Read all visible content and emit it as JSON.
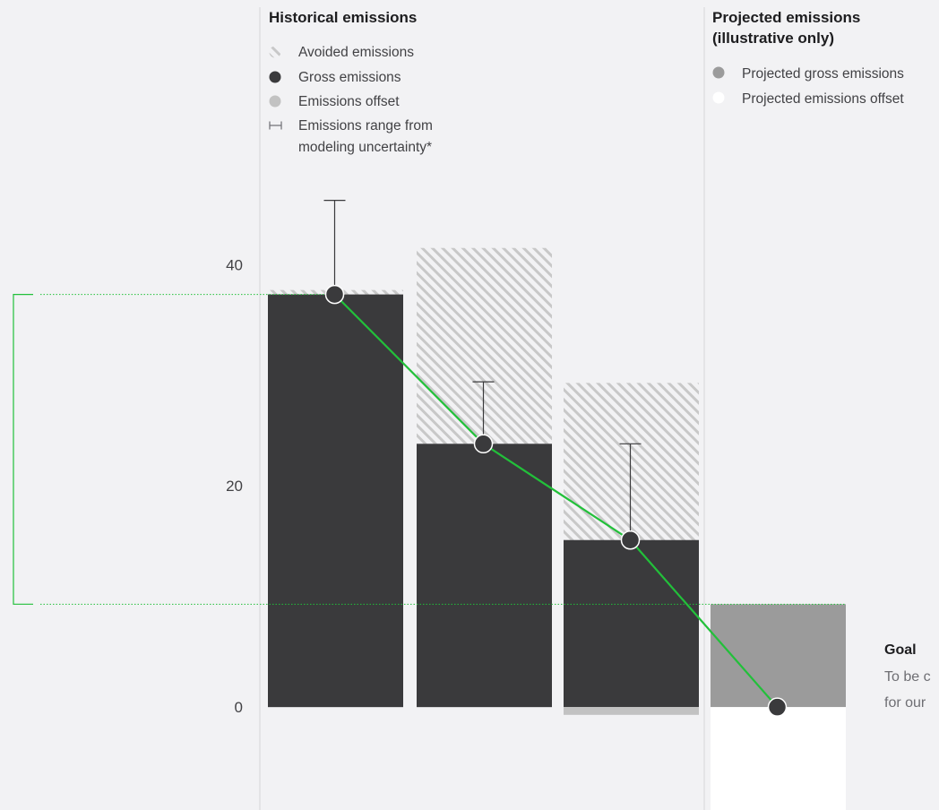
{
  "chart_data": {
    "type": "bar",
    "historical_heading": "Historical emissions",
    "projected_heading_line1": "Projected emissions",
    "projected_heading_line2": "(illustrative only)",
    "legend_historical": [
      {
        "label": "Avoided emissions",
        "swatch": "hatch",
        "color": "#d0d0d0"
      },
      {
        "label": "Gross emissions",
        "swatch": "dot",
        "color": "#3a3a3c"
      },
      {
        "label": "Emissions offset",
        "swatch": "dot",
        "color": "#c2c2c2"
      },
      {
        "label_line1": "Emissions range from",
        "label_line2": "modeling uncertainty*",
        "swatch": "range",
        "color": "#6e6e73"
      }
    ],
    "legend_projected": [
      {
        "label": "Projected gross emissions",
        "swatch": "dot",
        "color": "#9b9b9b"
      },
      {
        "label": "Projected emissions offset",
        "swatch": "dot",
        "color": "#ffffff"
      }
    ],
    "y_ticks": [
      0,
      20,
      40
    ],
    "ylim": [
      -9.3,
      58
    ],
    "historical_bars": [
      {
        "gross": 37.3,
        "avoided": 0.4,
        "offset": 0,
        "error_low": 29.0,
        "error_high": 45.8
      },
      {
        "gross": 23.8,
        "avoided": 17.7,
        "offset": 0,
        "error_low": 22.4,
        "error_high": 29.4
      },
      {
        "gross": 15.1,
        "avoided": 14.2,
        "offset": 0.7,
        "error_low": 13.7,
        "error_high": 23.8
      }
    ],
    "projected_bar": {
      "gross": 9.3,
      "offset": 9.3
    },
    "trend_line": [
      37.3,
      23.8,
      15.1,
      0
    ],
    "bracket_values": [
      37.3,
      9.3
    ],
    "goal": {
      "title": "Goal",
      "line1": "To be c",
      "line2": "for our"
    },
    "colors": {
      "gross": "#3a3a3c",
      "avoided_hatch": "#c8c8c8",
      "offset": "#c2c2c2",
      "projected_gross": "#9b9b9b",
      "projected_offset": "#ffffff",
      "trend": "#22c03a",
      "divider": "#d6d6d8",
      "error": "#3a3a3c"
    }
  }
}
